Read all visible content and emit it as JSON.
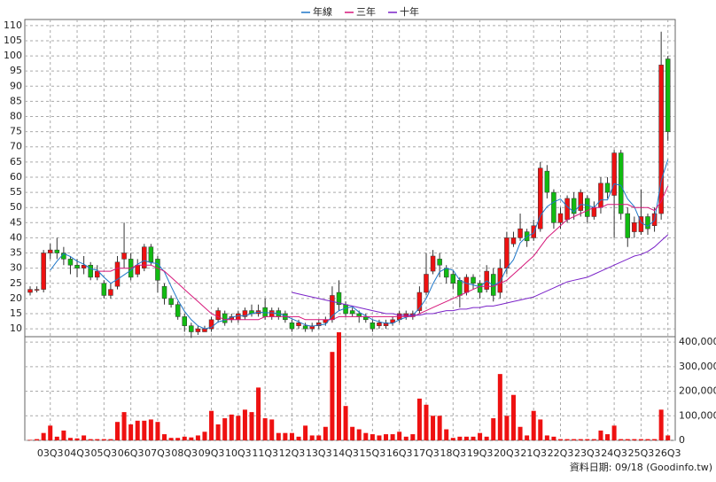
{
  "chart_data": [
    {
      "type": "candlestick",
      "categories": [
        null,
        null,
        null,
        "03Q3",
        null,
        null,
        null,
        "04Q3",
        null,
        null,
        null,
        "05Q3",
        null,
        null,
        null,
        "06Q3",
        null,
        null,
        null,
        "07Q3",
        null,
        null,
        null,
        "08Q3",
        null,
        null,
        null,
        "09Q3",
        null,
        null,
        null,
        "10Q3",
        null,
        null,
        null,
        "11Q3",
        null,
        null,
        null,
        "12Q3",
        null,
        null,
        null,
        "13Q3",
        null,
        null,
        null,
        "14Q3",
        null,
        null,
        null,
        "15Q3",
        null,
        null,
        null,
        "16Q3",
        null,
        null,
        null,
        "17Q3",
        null,
        null,
        null,
        "18Q3",
        null,
        null,
        null,
        "19Q3",
        null,
        null,
        null,
        "20Q3",
        null,
        null,
        null,
        "21Q3",
        null,
        null,
        null,
        "22Q3",
        null,
        null,
        null,
        "23Q3",
        null,
        null,
        null,
        "24Q3",
        null,
        null,
        null,
        "25Q3",
        null,
        null,
        null,
        "26Q3"
      ],
      "open": [
        22,
        23,
        23,
        35,
        36,
        35,
        33,
        31,
        30,
        31,
        27,
        25,
        21,
        24,
        33,
        33,
        28,
        30,
        37,
        33,
        24,
        20,
        18,
        14,
        11,
        9,
        9,
        10,
        13,
        15,
        13,
        13,
        14,
        16,
        15,
        17,
        14,
        16,
        15,
        12,
        11,
        11,
        10,
        11,
        12,
        13,
        22,
        18,
        16,
        15,
        14,
        12,
        11,
        11,
        12,
        13,
        14,
        14,
        16,
        22,
        29,
        33,
        30,
        28,
        26,
        22,
        27,
        25,
        23,
        28,
        22,
        30,
        38,
        40,
        42,
        40,
        43,
        62,
        55,
        45,
        46,
        53,
        49,
        53,
        47,
        50,
        58,
        54,
        68,
        48,
        42,
        42,
        47,
        44,
        48,
        99
      ],
      "high": [
        24,
        24,
        36,
        38,
        40,
        37,
        34,
        33,
        34,
        32,
        31,
        26,
        25,
        34,
        45,
        35,
        33,
        38,
        38,
        34,
        25,
        21,
        19,
        15,
        12,
        11,
        11,
        14,
        17,
        16,
        15,
        16,
        17,
        18,
        18,
        20,
        17,
        17,
        16,
        13,
        13,
        12,
        12,
        13,
        14,
        24,
        26,
        19,
        17,
        16,
        15,
        13,
        13,
        13,
        14,
        16,
        16,
        16,
        24,
        35,
        36,
        35,
        31,
        29,
        27,
        28,
        28,
        26,
        31,
        30,
        33,
        42,
        42,
        48,
        43,
        46,
        65,
        64,
        56,
        50,
        54,
        55,
        56,
        54,
        52,
        60,
        60,
        69,
        69,
        50,
        47,
        56,
        48,
        50,
        108,
        100
      ],
      "low": [
        21,
        22,
        22,
        33,
        33,
        31,
        28,
        27,
        28,
        26,
        26,
        20,
        20,
        23,
        30,
        26,
        27,
        29,
        31,
        22,
        18,
        17,
        13,
        9,
        7,
        8,
        9,
        9,
        12,
        11,
        12,
        12,
        13,
        14,
        14,
        13,
        13,
        13,
        12,
        9,
        10,
        9,
        9,
        10,
        11,
        12,
        16,
        14,
        14,
        12,
        12,
        9,
        10,
        10,
        11,
        12,
        13,
        13,
        15,
        21,
        28,
        27,
        25,
        23,
        17,
        21,
        23,
        20,
        22,
        19,
        20,
        28,
        37,
        39,
        37,
        39,
        42,
        53,
        43,
        43,
        45,
        46,
        47,
        45,
        46,
        48,
        53,
        40,
        46,
        37,
        40,
        41,
        41,
        42,
        46,
        72
      ],
      "close": [
        23,
        23,
        35,
        36,
        35,
        33,
        31,
        30,
        31,
        27,
        29,
        21,
        23,
        32,
        35,
        27,
        31,
        37,
        32,
        26,
        20,
        18,
        14,
        11,
        9,
        10,
        10,
        13,
        16,
        12,
        14,
        15,
        16,
        15,
        16,
        14,
        16,
        14,
        13,
        10,
        12,
        10,
        11,
        12,
        13,
        21,
        18,
        15,
        15,
        14,
        13,
        10,
        12,
        12,
        13,
        15,
        15,
        15,
        22,
        28,
        34,
        31,
        27,
        25,
        21,
        27,
        25,
        22,
        29,
        21,
        30,
        40,
        40,
        43,
        39,
        44,
        63,
        55,
        45,
        48,
        53,
        48,
        55,
        47,
        50,
        58,
        55,
        68,
        48,
        40,
        45,
        47,
        43,
        48,
        97,
        75
      ],
      "up_color": "#ee1111",
      "down_color": "#11bb11",
      "series": [
        {
          "name": "年線",
          "color": "#1f77c8",
          "values": [
            null,
            null,
            null,
            29.3,
            32.3,
            34.8,
            33.8,
            32.3,
            31.3,
            29.8,
            29.3,
            27,
            25,
            26.3,
            27.8,
            29.3,
            31.3,
            32.5,
            31.8,
            31.5,
            28.8,
            24,
            19.5,
            15.8,
            13,
            11,
            10,
            10.5,
            12.3,
            12.8,
            13.8,
            14.3,
            14.3,
            15,
            15.5,
            15.3,
            15.3,
            15,
            14.3,
            13.3,
            12.3,
            11.3,
            10.8,
            11.3,
            11.5,
            14.3,
            16,
            16.8,
            17.3,
            15.5,
            14.3,
            13,
            12.3,
            11.8,
            11.8,
            13,
            13.8,
            14.5,
            16.8,
            20,
            24.8,
            28.8,
            30,
            29.3,
            26,
            25,
            24.5,
            23.8,
            25.8,
            24.3,
            25.5,
            30,
            32.8,
            38.3,
            40.5,
            41.5,
            47.3,
            50.3,
            51.8,
            52.8,
            50.3,
            48.5,
            51,
            50.8,
            50,
            52.5,
            52.5,
            57.8,
            57.3,
            52.8,
            50.3,
            45,
            43.8,
            45.8,
            58.8,
            65.8
          ]
        },
        {
          "name": "三年",
          "color": "#d6177a",
          "values": [
            null,
            null,
            null,
            null,
            null,
            null,
            null,
            null,
            null,
            null,
            29,
            29,
            29,
            30,
            30,
            30,
            31,
            31,
            31,
            30,
            29,
            27,
            25,
            23,
            21,
            19,
            17,
            15,
            14,
            13,
            13,
            13,
            13,
            13,
            13,
            14,
            14,
            14,
            14,
            14,
            14,
            13,
            13,
            13,
            13,
            13,
            14,
            14,
            14,
            14,
            14,
            14,
            14,
            14,
            14,
            14,
            14,
            14,
            15,
            16,
            17,
            18,
            19,
            20,
            21,
            22,
            23,
            24,
            24,
            24,
            25,
            26,
            28,
            30,
            32,
            34,
            37,
            40,
            42,
            44,
            46,
            47,
            48,
            49,
            50,
            50,
            51,
            51,
            51,
            51,
            50,
            50,
            50,
            49,
            52,
            57
          ]
        },
        {
          "name": "十年",
          "color": "#7a22c8",
          "values": [
            null,
            null,
            null,
            null,
            null,
            null,
            null,
            null,
            null,
            null,
            null,
            null,
            null,
            null,
            null,
            null,
            null,
            null,
            null,
            null,
            null,
            null,
            null,
            null,
            null,
            null,
            null,
            null,
            null,
            null,
            null,
            null,
            null,
            null,
            null,
            null,
            null,
            null,
            null,
            22,
            21.5,
            21,
            20.5,
            20,
            19.5,
            19,
            18.5,
            18,
            17.5,
            17,
            16.5,
            16,
            15.5,
            15,
            15,
            14.5,
            14.5,
            14.5,
            14.5,
            15,
            15,
            15.5,
            16,
            16,
            16.5,
            16.5,
            17,
            17,
            17.5,
            17.5,
            18,
            18.5,
            19,
            19.5,
            20,
            20.5,
            21.5,
            22.5,
            23.5,
            24.5,
            25.5,
            26,
            26.5,
            27,
            28,
            29,
            30,
            31,
            32,
            33,
            34,
            34.5,
            35.5,
            37,
            39,
            41
          ]
        }
      ],
      "ylim": [
        7.4,
        112
      ],
      "yticks": [
        10,
        15,
        20,
        25,
        30,
        35,
        40,
        45,
        50,
        55,
        60,
        65,
        70,
        75,
        80,
        85,
        90,
        95,
        100,
        105,
        110
      ],
      "grid": true
    },
    {
      "type": "bar",
      "values": [
        2000,
        5000,
        30000,
        60000,
        15000,
        40000,
        10000,
        8000,
        20000,
        5000,
        5000,
        5000,
        5000,
        75000,
        115000,
        65000,
        80000,
        80000,
        85000,
        75000,
        25000,
        10000,
        10000,
        15000,
        12000,
        20000,
        35000,
        120000,
        65000,
        90000,
        105000,
        100000,
        125000,
        115000,
        215000,
        90000,
        85000,
        30000,
        30000,
        30000,
        15000,
        60000,
        20000,
        20000,
        55000,
        360000,
        440000,
        140000,
        55000,
        45000,
        30000,
        25000,
        20000,
        25000,
        25000,
        35000,
        15000,
        25000,
        170000,
        145000,
        100000,
        100000,
        45000,
        10000,
        15000,
        15000,
        15000,
        30000,
        15000,
        90000,
        270000,
        100000,
        185000,
        55000,
        20000,
        120000,
        85000,
        20000,
        15000,
        5000,
        5000,
        5000,
        5000,
        5000,
        5000,
        40000,
        25000,
        60000,
        5000,
        5000,
        5000,
        5000,
        5000,
        5000,
        125000,
        20000
      ],
      "color": "#ee1111",
      "ylim": [
        0,
        422000
      ],
      "yticks": [
        0,
        {
          "value": 100000,
          "label": "100,000"
        },
        {
          "value": 200000,
          "label": "200,000"
        },
        {
          "value": 300000,
          "label": "300,000"
        },
        {
          "value": 400000,
          "label": "400,000"
        }
      ],
      "grid": true
    }
  ],
  "footer": "資料日期: 09/18 (Goodinfo.tw)"
}
